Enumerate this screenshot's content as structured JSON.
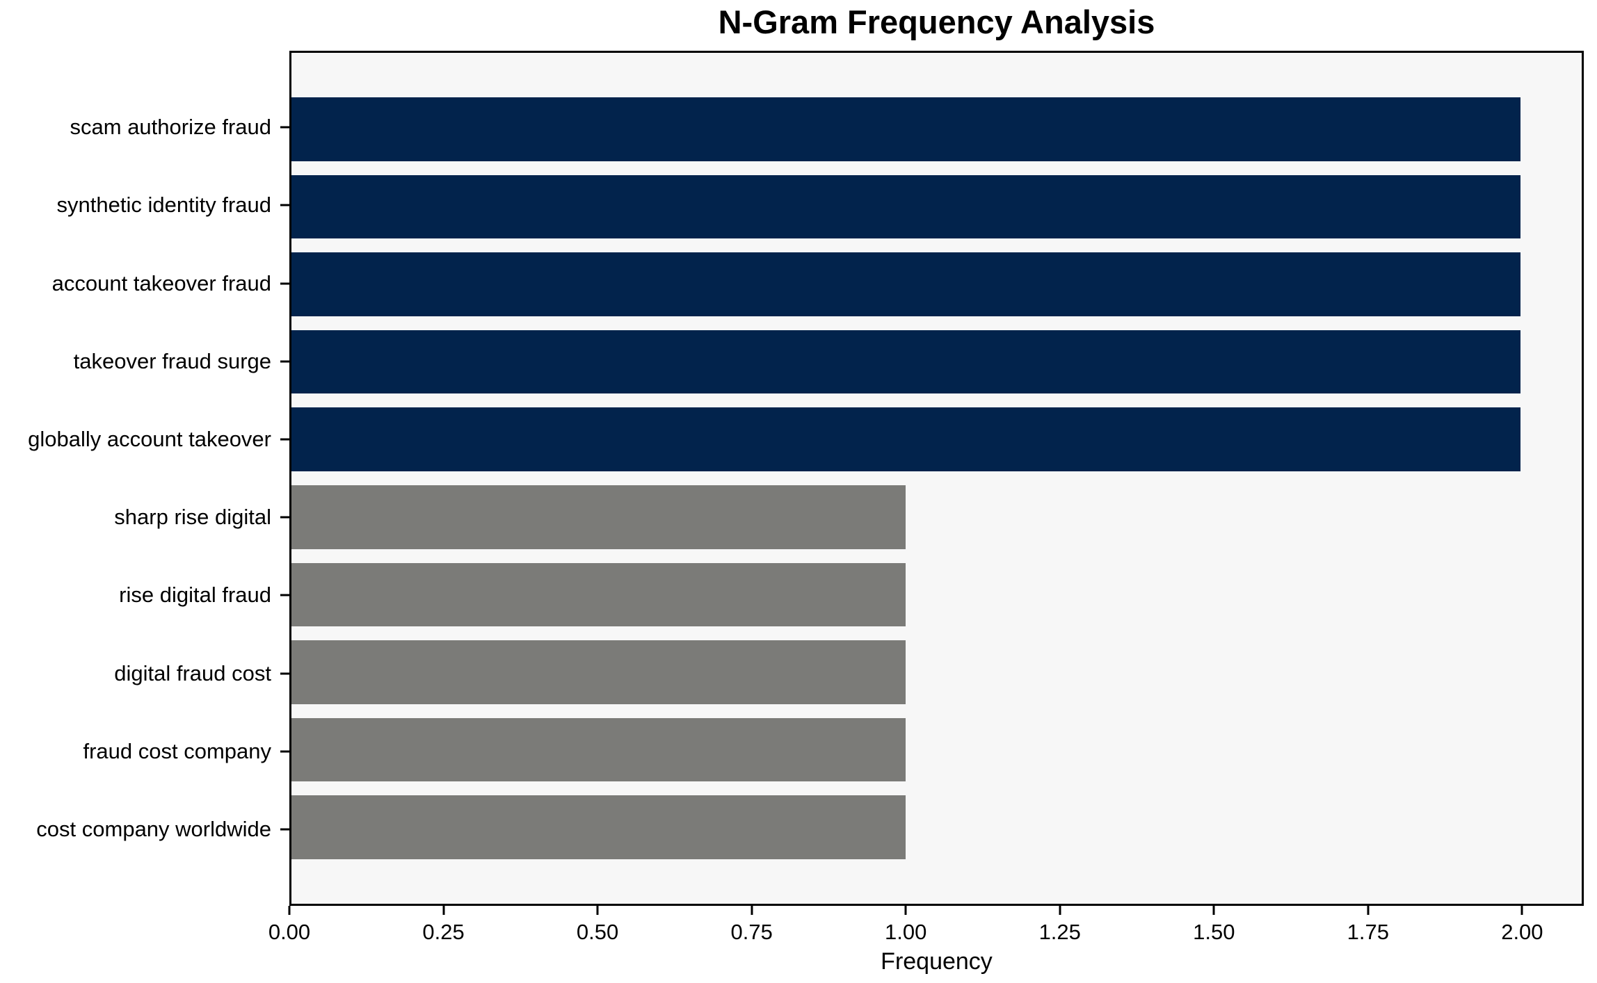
{
  "chart_data": {
    "type": "bar",
    "orientation": "horizontal",
    "title": "N-Gram Frequency Analysis",
    "xlabel": "Frequency",
    "ylabel": "",
    "categories": [
      "scam authorize fraud",
      "synthetic identity fraud",
      "account takeover fraud",
      "takeover fraud surge",
      "globally account takeover",
      "sharp rise digital",
      "rise digital fraud",
      "digital fraud cost",
      "fraud cost company",
      "cost company worldwide"
    ],
    "values": [
      2,
      2,
      2,
      2,
      2,
      1,
      1,
      1,
      1,
      1
    ],
    "bar_colors": [
      "#02234c",
      "#02234c",
      "#02234c",
      "#02234c",
      "#02234c",
      "#7b7b78",
      "#7b7b78",
      "#7b7b78",
      "#7b7b78",
      "#7b7b78"
    ],
    "xlim": [
      0,
      2.1
    ],
    "xticks": {
      "values": [
        0,
        0.25,
        0.5,
        0.75,
        1.0,
        1.25,
        1.5,
        1.75,
        2.0
      ],
      "labels": [
        "0.00",
        "0.25",
        "0.50",
        "0.75",
        "1.00",
        "1.25",
        "1.50",
        "1.75",
        "2.00"
      ]
    },
    "grid": false,
    "legend_position": "none",
    "colors": {
      "bar_highlight": "#02234c",
      "bar_normal": "#7b7b78",
      "plot_background": "#f7f7f7",
      "figure_background": "#ffffff",
      "axis": "#000000",
      "text": "#000000"
    }
  }
}
